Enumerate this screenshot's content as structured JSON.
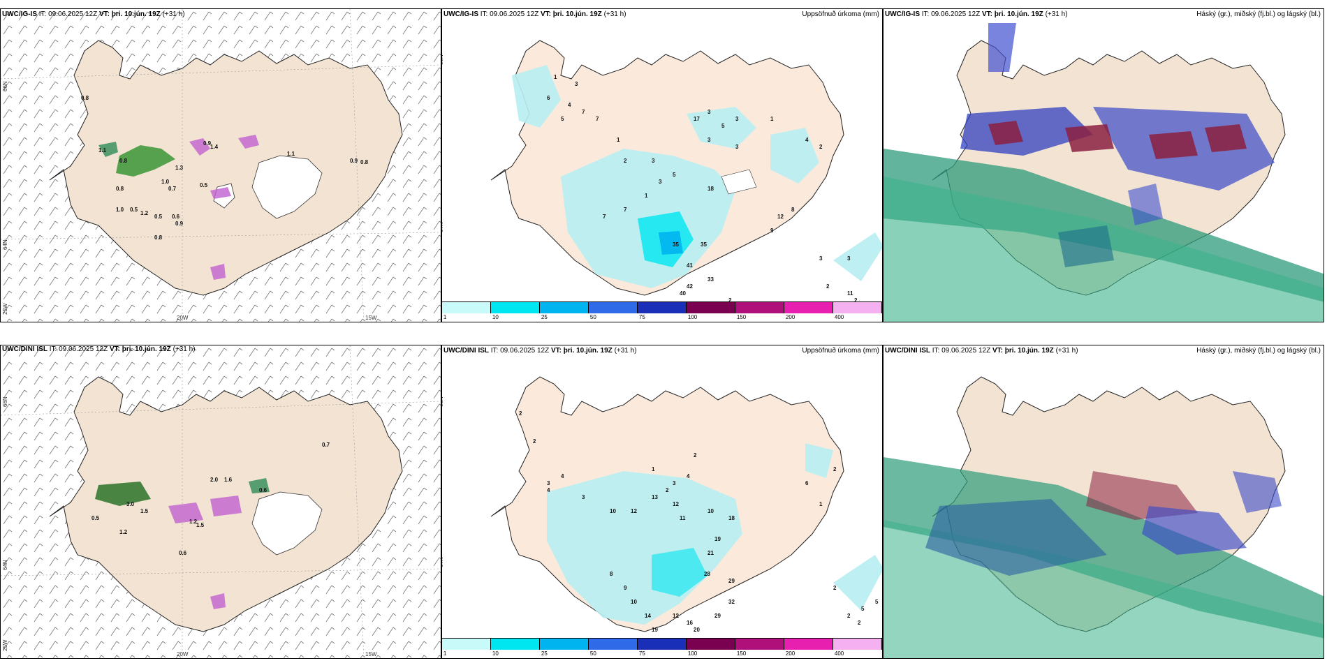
{
  "panels": {
    "p1": {
      "model": "UWC/IG-IS",
      "it": "IT: 09.06.2025 12Z",
      "vt_label": "VT:",
      "vt": "þri. 10.jún. 19Z",
      "lead": "(+31 h)"
    },
    "p2": {
      "model": "UWC/IG-IS",
      "it": "IT: 09.06.2025 12Z",
      "vt_label": "VT:",
      "vt": "þri. 10.jún. 19Z",
      "lead": "(+31 h)",
      "right": "Uppsöfnuð úrkoma (mm)"
    },
    "p3": {
      "model": "UWC/IG-IS",
      "it": "IT: 09.06.2025 12Z",
      "vt_label": "VT:",
      "vt": "þri. 10.jún. 19Z",
      "lead": "(+31 h)",
      "right": "Háský (gr.), miðský (fj.bl.) og lágský (bl.)"
    },
    "p4": {
      "model": "UWC/DINI ISL",
      "it": "IT: 09.06.2025 12Z",
      "vt_label": "VT:",
      "vt": "þri. 10.jún. 19Z",
      "lead": "(+31 h)"
    },
    "p5": {
      "model": "UWC/DINI ISL",
      "it": "IT: 09.06.2025 12Z",
      "vt_label": "VT:",
      "vt": "þri. 10.jún. 19Z",
      "lead": "(+31 h)",
      "right": "Uppsöfnuð úrkoma (mm)"
    },
    "p6": {
      "model": "UWC/DINI ISL",
      "it": "IT: 09.06.2025 12Z",
      "vt_label": "VT:",
      "vt": "þri. 10.jún. 19Z",
      "lead": "(+31 h)",
      "right": "Háský (gr.), miðský (fj.bl.) og lágský (bl.)"
    }
  },
  "axis": {
    "lat66": "66N",
    "lat64": "64N",
    "lon25": "25W",
    "lon20": "20W",
    "lon15": "15W"
  },
  "colorbar": {
    "ticks": [
      "1",
      "10",
      "25",
      "50",
      "75",
      "100",
      "150",
      "200",
      "400"
    ],
    "colors": [
      "#c8fafa",
      "#00e6f0",
      "#00b4f0",
      "#2f6be8",
      "#1a2fb8",
      "#7a0050",
      "#b0107a",
      "#e820b0",
      "#f4b0f0"
    ]
  },
  "precip_top": [
    "1",
    "3",
    "6",
    "4",
    "5",
    "7",
    "7",
    "2",
    "3",
    "5",
    "17",
    "3",
    "5",
    "3",
    "3",
    "3",
    "1",
    "18",
    "35",
    "35",
    "41",
    "33",
    "40",
    "42",
    "2",
    "3",
    "3",
    "2",
    "11",
    "2",
    "12",
    "8",
    "9",
    "4",
    "2",
    "1",
    "7",
    "7",
    "1",
    "3"
  ],
  "precip_bottom": [
    "2",
    "2",
    "3",
    "4",
    "4",
    "3",
    "10",
    "12",
    "13",
    "12",
    "11",
    "10",
    "18",
    "19",
    "21",
    "28",
    "29",
    "32",
    "29",
    "20",
    "16",
    "12",
    "19",
    "14",
    "10",
    "9",
    "8",
    "2",
    "5",
    "5",
    "2",
    "2",
    "6",
    "2",
    "1",
    "1",
    "2",
    "4",
    "3",
    "2"
  ],
  "wind_top_vals": [
    "0.8",
    "1.1",
    "0.8",
    "0.8",
    "1.0",
    "0.5",
    "1.2",
    "0.5",
    "0.6",
    "0.9",
    "0.8",
    "1.3",
    "0.9",
    "1.4",
    "0.5",
    "0.7",
    "1.1",
    "0.9",
    "0.8",
    "1.0"
  ],
  "wind_bot_vals": [
    "0.7",
    "2.0",
    "1.6",
    "0.6",
    "1.5",
    "3.0",
    "0.5",
    "1.2",
    "0.6",
    "1.2",
    "1.5"
  ]
}
